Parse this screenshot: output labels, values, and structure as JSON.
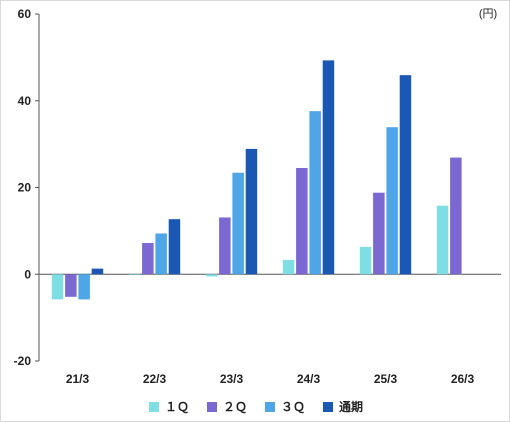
{
  "chart_data": {
    "type": "bar",
    "unit_label": "(円)",
    "categories": [
      "21/3",
      "22/3",
      "23/3",
      "24/3",
      "25/3",
      "26/3"
    ],
    "series": [
      {
        "name": "１Ｑ",
        "color": "#7fdde4",
        "values": [
          -5.8,
          0.0,
          -0.5,
          3.3,
          6.3,
          15.8
        ]
      },
      {
        "name": "２Ｑ",
        "color": "#7b68d1",
        "values": [
          -5.2,
          7.2,
          13.1,
          24.5,
          18.8,
          26.9
        ]
      },
      {
        "name": "３Ｑ",
        "color": "#4ea6e6",
        "values": [
          -5.8,
          9.4,
          23.4,
          37.6,
          33.9,
          null
        ]
      },
      {
        "name": "通期",
        "color": "#1a58b3",
        "values": [
          1.3,
          12.7,
          28.9,
          49.3,
          45.9,
          null
        ]
      }
    ],
    "yticks": [
      -20,
      0,
      20,
      40,
      60
    ],
    "ylim": [
      -20,
      60
    ],
    "grid": false,
    "legend_position": "bottom"
  }
}
